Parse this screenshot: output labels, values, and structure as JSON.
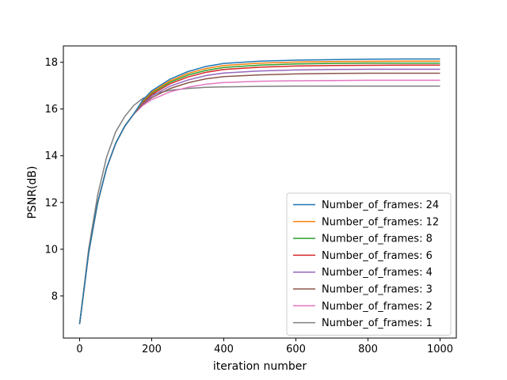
{
  "chart_data": {
    "type": "line",
    "title": "",
    "xlabel": "iteration number",
    "ylabel": "PSNR(dB)",
    "xlim": [
      -45,
      1045
    ],
    "ylim": [
      6.2,
      18.7
    ],
    "xticks": [
      0,
      200,
      400,
      600,
      800,
      1000
    ],
    "yticks": [
      8,
      10,
      12,
      14,
      16,
      18
    ],
    "grid": false,
    "legend_position": "lower-right",
    "x": [
      0,
      25,
      50,
      75,
      100,
      125,
      150,
      175,
      200,
      250,
      300,
      350,
      400,
      500,
      600,
      700,
      800,
      900,
      1000
    ],
    "series": [
      {
        "name": "Number_of_frames: 24",
        "color": "#1f77b4",
        "values": [
          6.8,
          9.85,
          11.98,
          13.48,
          14.53,
          15.26,
          15.78,
          16.38,
          16.78,
          17.27,
          17.6,
          17.82,
          17.95,
          18.05,
          18.09,
          18.11,
          18.13,
          18.14,
          18.14
        ]
      },
      {
        "name": "Number_of_frames: 12",
        "color": "#ff7f0e",
        "values": [
          6.8,
          9.85,
          11.98,
          13.48,
          14.53,
          15.26,
          15.78,
          16.34,
          16.72,
          17.2,
          17.52,
          17.73,
          17.86,
          17.96,
          18.01,
          18.03,
          18.04,
          18.05,
          18.05
        ]
      },
      {
        "name": "Number_of_frames: 8",
        "color": "#2ca02c",
        "values": [
          6.8,
          9.85,
          11.98,
          13.48,
          14.53,
          15.26,
          15.78,
          16.31,
          16.68,
          17.14,
          17.45,
          17.65,
          17.78,
          17.88,
          17.93,
          17.95,
          17.96,
          17.96,
          17.96
        ]
      },
      {
        "name": "Number_of_frames: 6",
        "color": "#d62728",
        "values": [
          6.8,
          9.85,
          11.98,
          13.48,
          14.53,
          15.26,
          15.78,
          16.27,
          16.62,
          17.07,
          17.37,
          17.57,
          17.69,
          17.79,
          17.84,
          17.86,
          17.87,
          17.88,
          17.88
        ]
      },
      {
        "name": "Number_of_frames: 4",
        "color": "#9467bd",
        "values": [
          6.8,
          9.85,
          11.98,
          13.48,
          14.53,
          15.26,
          15.78,
          16.23,
          16.55,
          16.97,
          17.24,
          17.43,
          17.54,
          17.63,
          17.67,
          17.69,
          17.7,
          17.7,
          17.7
        ]
      },
      {
        "name": "Number_of_frames: 3",
        "color": "#8c564b",
        "values": [
          6.8,
          9.85,
          11.98,
          13.48,
          14.53,
          15.26,
          15.78,
          16.2,
          16.48,
          16.87,
          17.12,
          17.29,
          17.39,
          17.46,
          17.5,
          17.52,
          17.53,
          17.53,
          17.53
        ]
      },
      {
        "name": "Number_of_frames: 2",
        "color": "#e377c2",
        "values": [
          6.8,
          9.85,
          11.98,
          13.48,
          14.53,
          15.26,
          15.78,
          16.15,
          16.4,
          16.73,
          16.93,
          17.06,
          17.13,
          17.19,
          17.21,
          17.22,
          17.23,
          17.23,
          17.23
        ]
      },
      {
        "name": "Number_of_frames: 1",
        "color": "#7f7f7f",
        "values": [
          6.8,
          10.0,
          12.3,
          13.95,
          15.02,
          15.68,
          16.15,
          16.45,
          16.62,
          16.8,
          16.88,
          16.93,
          16.95,
          16.97,
          16.98,
          16.98,
          16.98,
          16.98,
          16.98
        ]
      }
    ]
  }
}
